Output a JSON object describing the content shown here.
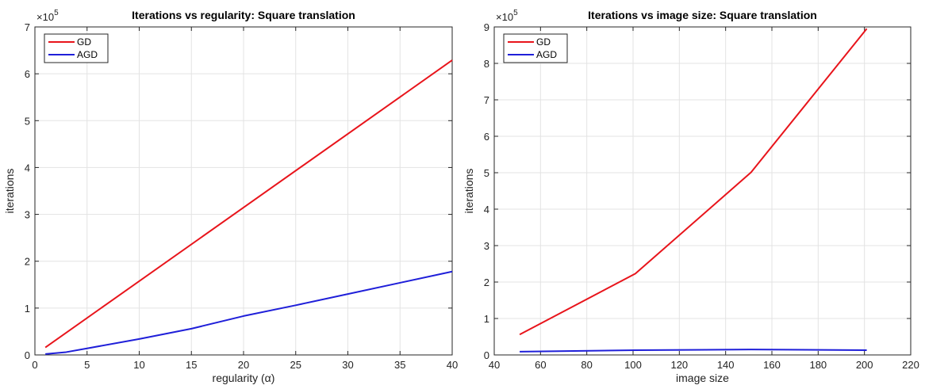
{
  "chart_data": [
    {
      "type": "line",
      "title": "Iterations vs regularity: Square translation",
      "xlabel": "regularity (α)",
      "ylabel": "iterations",
      "y_multiplier": "×10",
      "y_multiplier_exp": "5",
      "xlim": [
        0,
        40
      ],
      "ylim": [
        0,
        7
      ],
      "xticks": [
        0,
        5,
        10,
        15,
        20,
        25,
        30,
        35,
        40
      ],
      "yticks": [
        0,
        1,
        2,
        3,
        4,
        5,
        6,
        7
      ],
      "grid": true,
      "legend": "top-left",
      "series": [
        {
          "name": "GD",
          "color": "#e8141b",
          "x": [
            1,
            40
          ],
          "y": [
            0.16,
            6.29
          ]
        },
        {
          "name": "AGD",
          "color": "#1f1fd9",
          "x": [
            1,
            3,
            5,
            10,
            15,
            20,
            25,
            30,
            35,
            40
          ],
          "y": [
            0.02,
            0.06,
            0.14,
            0.34,
            0.56,
            0.83,
            1.06,
            1.3,
            1.54,
            1.78
          ]
        }
      ]
    },
    {
      "type": "line",
      "title": "Iterations vs image size: Square translation",
      "xlabel": "image size",
      "ylabel": "iterations",
      "y_multiplier": "×10",
      "y_multiplier_exp": "5",
      "xlim": [
        40,
        220
      ],
      "ylim": [
        0,
        9
      ],
      "xticks": [
        40,
        60,
        80,
        100,
        120,
        140,
        160,
        180,
        200,
        220
      ],
      "yticks": [
        0,
        1,
        2,
        3,
        4,
        5,
        6,
        7,
        8,
        9
      ],
      "grid": true,
      "legend": "top-left",
      "series": [
        {
          "name": "GD",
          "color": "#e8141b",
          "x": [
            51,
            101,
            151,
            201
          ],
          "y": [
            0.56,
            2.23,
            5.01,
            8.95
          ]
        },
        {
          "name": "AGD",
          "color": "#1f1fd9",
          "x": [
            51,
            101,
            151,
            201
          ],
          "y": [
            0.09,
            0.13,
            0.15,
            0.13
          ]
        }
      ]
    }
  ]
}
